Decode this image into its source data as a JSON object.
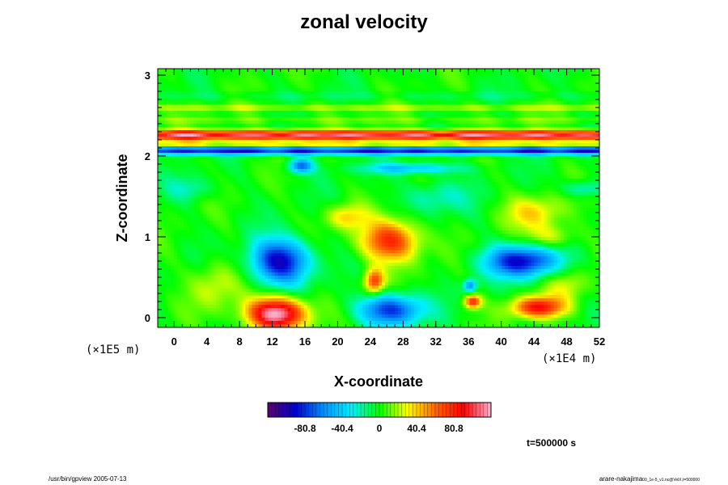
{
  "chart_data": {
    "type": "heatmap",
    "title": "zonal velocity",
    "xlabel": "X-coordinate",
    "ylabel": "Z-coordinate",
    "x_unit": "(×1E4 m)",
    "z_unit": "(×1E5 m)",
    "xlim": [
      -2,
      52
    ],
    "ylim": [
      -0.12,
      3.08
    ],
    "x_ticks": [
      0,
      4,
      8,
      12,
      16,
      20,
      24,
      28,
      32,
      36,
      40,
      44,
      48,
      52
    ],
    "y_ticks": [
      0,
      1,
      2,
      3
    ],
    "colorbar": {
      "min": -121.2,
      "max": 121.2,
      "ticks": [
        -80.8,
        -40.4,
        0,
        40.4,
        80.8
      ],
      "colors": [
        "#5a006e",
        "#0000d0",
        "#0090ff",
        "#00f0ff",
        "#00ff00",
        "#ffff00",
        "#ff6600",
        "#ff0000",
        "#ffb0d0"
      ]
    },
    "bands": [
      {
        "z": 2.26,
        "value": 105,
        "dz": 0.06
      },
      {
        "z": 2.07,
        "value": -85,
        "dz": 0.05
      },
      {
        "z": 2.15,
        "value": 40,
        "dz": 0.03
      },
      {
        "z": 2.6,
        "value": 20,
        "dz": 0.04
      },
      {
        "z": 2.75,
        "value": -8,
        "dz": 0.05
      },
      {
        "z": 2.45,
        "value": 12,
        "dz": 0.04
      }
    ],
    "blobs": [
      {
        "x": 13,
        "z": 0.7,
        "value": -95,
        "rx": 3.6,
        "rz": 0.28
      },
      {
        "x": 42.5,
        "z": 0.7,
        "value": -90,
        "rx": 4.5,
        "rz": 0.2
      },
      {
        "x": 12.5,
        "z": 0.05,
        "value": 125,
        "rx": 3.5,
        "rz": 0.2
      },
      {
        "x": 26.5,
        "z": 0.95,
        "value": 80,
        "rx": 3.5,
        "rz": 0.25
      },
      {
        "x": 24.5,
        "z": 0.45,
        "value": 75,
        "rx": 1.2,
        "rz": 0.15
      },
      {
        "x": 26.5,
        "z": 0.1,
        "value": -80,
        "rx": 4.0,
        "rz": 0.2
      },
      {
        "x": 36.5,
        "z": 0.2,
        "value": 80,
        "rx": 1.0,
        "rz": 0.08
      },
      {
        "x": 36.2,
        "z": 0.4,
        "value": -60,
        "rx": 0.8,
        "rz": 0.08
      },
      {
        "x": 44.5,
        "z": 0.13,
        "value": 85,
        "rx": 3.2,
        "rz": 0.13
      },
      {
        "x": 15.5,
        "z": 1.88,
        "value": -70,
        "rx": 1.5,
        "rz": 0.09
      },
      {
        "x": 29,
        "z": 1.85,
        "value": -45,
        "rx": 6.0,
        "rz": 0.07
      },
      {
        "x": 44,
        "z": 1.3,
        "value": 35,
        "rx": 3.5,
        "rz": 0.2
      },
      {
        "x": 46,
        "z": 1.0,
        "value": 30,
        "rx": 3.0,
        "rz": 0.15
      },
      {
        "x": 5,
        "z": 0.4,
        "value": 25,
        "rx": 3.0,
        "rz": 0.3
      },
      {
        "x": 21,
        "z": 1.25,
        "value": 35,
        "rx": 2.5,
        "rz": 0.15
      },
      {
        "x": 32,
        "z": 1.5,
        "value": -25,
        "rx": 4.0,
        "rz": 0.2
      },
      {
        "x": 2,
        "z": 1.6,
        "value": -20,
        "rx": 3.0,
        "rz": 0.15
      },
      {
        "x": 50,
        "z": 1.6,
        "value": -30,
        "rx": 2.5,
        "rz": 0.1
      },
      {
        "x": 48,
        "z": 0.4,
        "value": 25,
        "rx": 2.5,
        "rz": 0.2
      }
    ],
    "time_label": "t=500000 s"
  },
  "footer": {
    "left": "/usr/bin/gpview 2005-07-13",
    "right_main": "arare-nakajima",
    "right_small": "00_1e-5_v1.nc@VelX,t=500000"
  }
}
